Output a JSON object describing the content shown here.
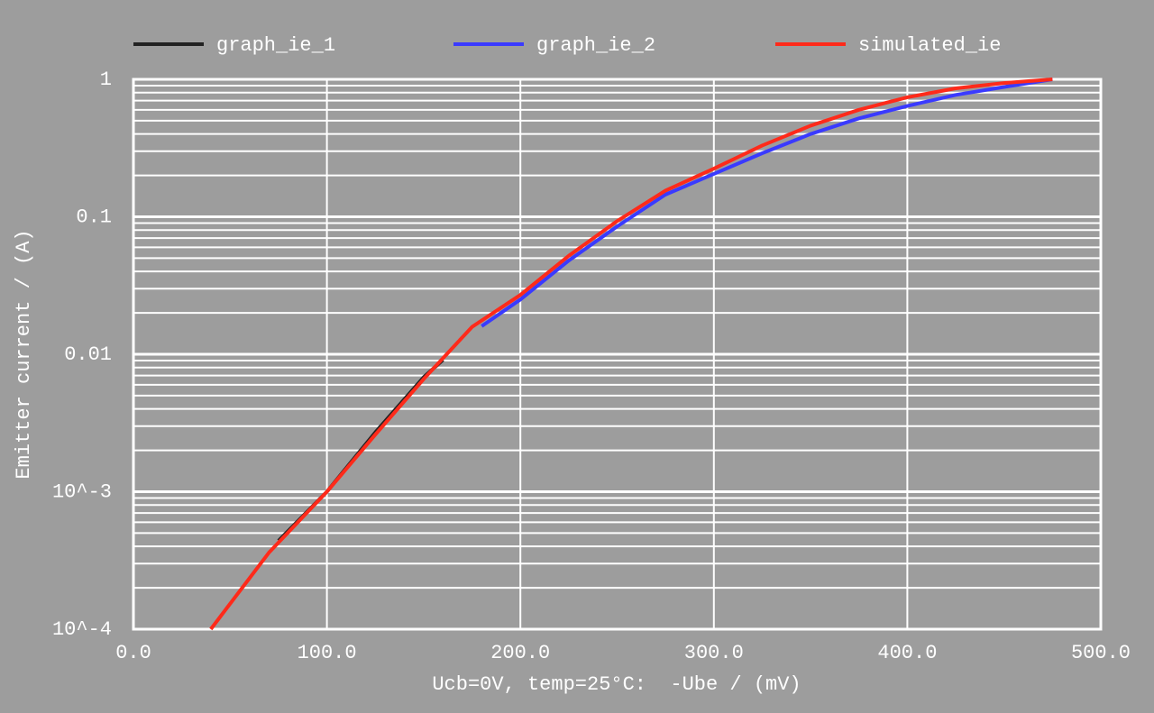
{
  "chart_data": {
    "type": "line",
    "x_label": "Ucb=0V, temp=25°C:  -Ube / (mV)",
    "y_label": "Emitter current / (A)",
    "xlim": [
      0,
      500
    ],
    "ylim": [
      0.0001,
      1
    ],
    "log_y": true,
    "grid": true,
    "minor_grid": true,
    "legend": "top",
    "xticks": [
      {
        "value": 0,
        "label": "0.0"
      },
      {
        "value": 100,
        "label": "100.0"
      },
      {
        "value": 200,
        "label": "200.0"
      },
      {
        "value": 300,
        "label": "300.0"
      },
      {
        "value": 400,
        "label": "400.0"
      },
      {
        "value": 500,
        "label": "500.0"
      }
    ],
    "yticks": [
      {
        "value": 0.0001,
        "label": "10^-4"
      },
      {
        "value": 0.001,
        "label": "10^-3"
      },
      0.01,
      0.1,
      1
    ],
    "series": [
      {
        "name": "graph_ie_1",
        "color": "#222222",
        "x": [
          75,
          100,
          125,
          150,
          160
        ],
        "values": [
          0.00044,
          0.001,
          0.0027,
          0.0068,
          0.0091
        ]
      },
      {
        "name": "graph_ie_2",
        "color": "#3a3aff",
        "x": [
          180,
          200,
          225,
          250,
          275,
          300,
          325,
          350,
          375,
          400,
          425,
          450,
          475
        ],
        "values": [
          0.016,
          0.025,
          0.048,
          0.085,
          0.145,
          0.205,
          0.29,
          0.4,
          0.52,
          0.64,
          0.77,
          0.88,
          1
        ]
      },
      {
        "name": "simulated_ie",
        "color": "#ff2a1a",
        "x": [
          40,
          70,
          100,
          125,
          150,
          175,
          200,
          225,
          250,
          275,
          300,
          325,
          350,
          375,
          400,
          425,
          450,
          475
        ],
        "values": [
          0.0001,
          0.00036,
          0.001,
          0.0026,
          0.0066,
          0.0158,
          0.027,
          0.052,
          0.093,
          0.155,
          0.224,
          0.33,
          0.46,
          0.6,
          0.74,
          0.86,
          0.94,
          1
        ]
      }
    ]
  }
}
